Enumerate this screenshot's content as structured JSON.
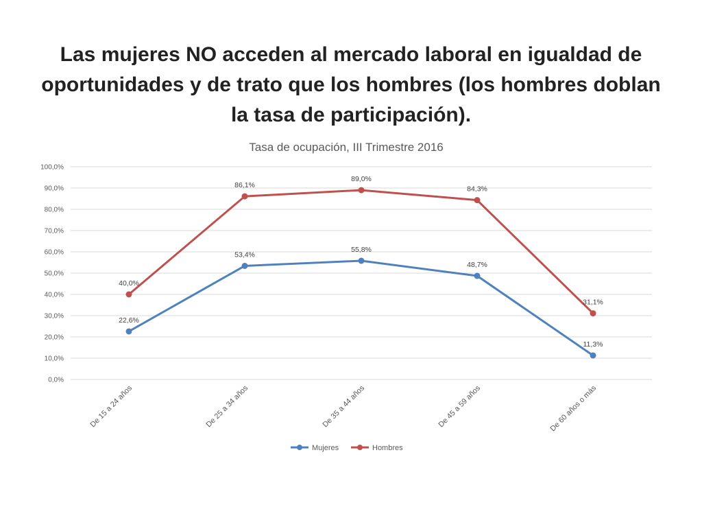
{
  "slide": {
    "title_lines": [
      "Las mujeres NO acceden al mercado laboral en igualdad de",
      "oportunidades y de trato que los hombres  (los hombres doblan",
      "la tasa de participación)."
    ]
  },
  "chart_data": {
    "type": "line",
    "title": "Tasa de ocupación, III Trimestre 2016",
    "categories": [
      "De 15 a 24 años",
      "De 25 a 34 años",
      "De 35 a 44 años",
      "De 45 a 59 años",
      "De 60 años o más"
    ],
    "series": [
      {
        "name": "Mujeres",
        "color": "#4f81bd",
        "values": [
          22.6,
          53.4,
          55.8,
          48.7,
          11.3
        ],
        "labels": [
          "22,6%",
          "53,4%",
          "55,8%",
          "48,7%",
          "11,3%"
        ]
      },
      {
        "name": "Hombres",
        "color": "#c0504d",
        "values": [
          40.0,
          86.1,
          89.0,
          84.3,
          31.1
        ],
        "labels": [
          "40,0%",
          "86,1%",
          "89,0%",
          "84,3%",
          "31,1%"
        ]
      }
    ],
    "ylim": [
      0,
      100
    ],
    "yticks": [
      0,
      10,
      20,
      30,
      40,
      50,
      60,
      70,
      80,
      90,
      100
    ],
    "ytick_labels": [
      "0,0%",
      "10,0%",
      "20,0%",
      "30,0%",
      "40,0%",
      "50,0%",
      "60,0%",
      "70,0%",
      "80,0%",
      "90,0%",
      "100,0%"
    ],
    "grid": true,
    "legend_position": "bottom"
  }
}
